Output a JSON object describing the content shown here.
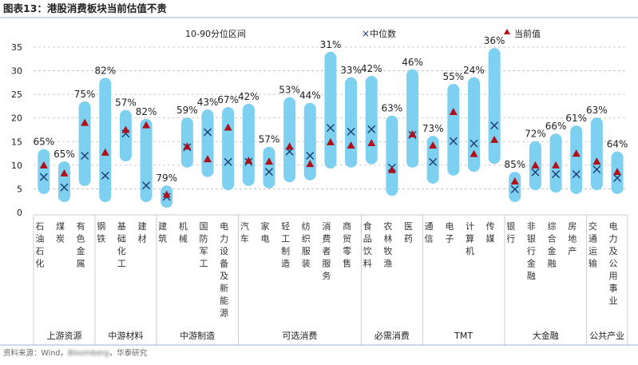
{
  "title": "图表13：港股消费板块当前估值不贵",
  "source": {
    "prefix": "资料来源：Wind，",
    "blurred": "Bloomberg",
    "suffix": "，华泰研究"
  },
  "colors": {
    "range": "#7dd0f0",
    "median": "#1f3a6e",
    "current": "#b0101a",
    "grid": "#bbbbbb",
    "text": "#222222"
  },
  "chart_data": {
    "type": "range-bar",
    "legend": {
      "range": "10-90分位区间",
      "median": "中位数",
      "current": "当前值",
      "placement": "top"
    },
    "ylim": [
      0,
      35
    ],
    "yticks": [
      0,
      5,
      10,
      15,
      20,
      25,
      30,
      35
    ],
    "grid": true,
    "categories": [
      {
        "name": "石油石化",
        "group": "上游资源",
        "p10": 4.4,
        "p90": 12.9,
        "median": 7.5,
        "current": 10.0,
        "percentile": "65%"
      },
      {
        "name": "煤炭",
        "group": "上游资源",
        "p10": 2.7,
        "p90": 10.3,
        "median": 5.3,
        "current": 8.3,
        "percentile": "65%"
      },
      {
        "name": "有色金属",
        "group": "上游资源",
        "p10": 6.1,
        "p90": 23.0,
        "median": 12.0,
        "current": 19.0,
        "percentile": "75%"
      },
      {
        "name": "钢铁",
        "group": "中游材料",
        "p10": 2.7,
        "p90": 28.0,
        "median": 7.8,
        "current": 12.7,
        "percentile": "82%"
      },
      {
        "name": "基础化工",
        "group": "中游材料",
        "p10": 11.3,
        "p90": 21.2,
        "median": 16.7,
        "current": 17.5,
        "percentile": "57%"
      },
      {
        "name": "建材",
        "group": "中游材料",
        "p10": 2.7,
        "p90": 19.3,
        "median": 5.7,
        "current": 18.5,
        "percentile": "82%"
      },
      {
        "name": "建筑",
        "group": "中游制造",
        "p10": 1.5,
        "p90": 5.2,
        "median": 3.3,
        "current": 3.8,
        "percentile": "79%"
      },
      {
        "name": "机械",
        "group": "中游制造",
        "p10": 10.0,
        "p90": 19.6,
        "median": 13.8,
        "current": 14.0,
        "percentile": "59%"
      },
      {
        "name": "国防军工",
        "group": "中游制造",
        "p10": 8.0,
        "p90": 21.3,
        "median": 17.0,
        "current": 11.3,
        "percentile": "43%"
      },
      {
        "name": "电力设备及新能源",
        "group": "中游制造",
        "p10": 5.2,
        "p90": 21.8,
        "median": 10.7,
        "current": 18.0,
        "percentile": "67%"
      },
      {
        "name": "汽车",
        "group": "可选消费",
        "p10": 6.1,
        "p90": 22.5,
        "median": 10.7,
        "current": 11.0,
        "percentile": "42%"
      },
      {
        "name": "家电",
        "group": "可选消费",
        "p10": 5.6,
        "p90": 13.4,
        "median": 8.6,
        "current": 10.8,
        "percentile": "57%"
      },
      {
        "name": "轻工制造",
        "group": "可选消费",
        "p10": 6.9,
        "p90": 23.9,
        "median": 12.9,
        "current": 14.0,
        "percentile": "53%"
      },
      {
        "name": "纺织服装",
        "group": "可选消费",
        "p10": 7.3,
        "p90": 22.7,
        "median": 12.0,
        "current": 10.3,
        "percentile": "44%"
      },
      {
        "name": "消费者服务",
        "group": "可选消费",
        "p10": 9.8,
        "p90": 33.5,
        "median": 17.9,
        "current": 14.9,
        "percentile": "31%"
      },
      {
        "name": "商贸零售",
        "group": "可选消费",
        "p10": 10.0,
        "p90": 28.1,
        "median": 17.1,
        "current": 14.2,
        "percentile": "33%"
      },
      {
        "name": "食品饮料",
        "group": "必需消费",
        "p10": 10.7,
        "p90": 28.4,
        "median": 17.6,
        "current": 14.7,
        "percentile": "42%"
      },
      {
        "name": "农林牧渔",
        "group": "必需消费",
        "p10": 4.0,
        "p90": 20.0,
        "median": 9.5,
        "current": 9.0,
        "percentile": "63%"
      },
      {
        "name": "医药",
        "group": "必需消费",
        "p10": 10.0,
        "p90": 29.8,
        "median": 16.4,
        "current": 16.6,
        "percentile": "46%"
      },
      {
        "name": "通信",
        "group": "TMT",
        "p10": 6.6,
        "p90": 15.7,
        "median": 10.7,
        "current": 14.2,
        "percentile": "73%"
      },
      {
        "name": "电子",
        "group": "TMT",
        "p10": 8.3,
        "p90": 26.7,
        "median": 15.1,
        "current": 21.3,
        "percentile": "55%"
      },
      {
        "name": "计算机",
        "group": "TMT",
        "p10": 9.1,
        "p90": 28.1,
        "median": 14.6,
        "current": 12.4,
        "percentile": "24%"
      },
      {
        "name": "传媒",
        "group": "TMT",
        "p10": 10.8,
        "p90": 34.3,
        "median": 18.4,
        "current": 15.4,
        "percentile": "36%"
      },
      {
        "name": "银行",
        "group": "大金融",
        "p10": 2.7,
        "p90": 8.1,
        "median": 4.9,
        "current": 6.6,
        "percentile": "85%"
      },
      {
        "name": "非银行金融",
        "group": "大金融",
        "p10": 5.2,
        "p90": 14.6,
        "median": 8.5,
        "current": 10.0,
        "percentile": "72%"
      },
      {
        "name": "综合金融",
        "group": "大金融",
        "p10": 4.7,
        "p90": 16.2,
        "median": 8.1,
        "current": 10.0,
        "percentile": "66%"
      },
      {
        "name": "房地产",
        "group": "大金融",
        "p10": 4.4,
        "p90": 17.9,
        "median": 8.1,
        "current": 12.5,
        "percentile": "61%"
      },
      {
        "name": "交通运输",
        "group": "公共产业",
        "p10": 5.2,
        "p90": 19.6,
        "median": 9.1,
        "current": 10.8,
        "percentile": "63%"
      },
      {
        "name": "电力及公用事业",
        "group": "公共产业",
        "p10": 4.4,
        "p90": 12.4,
        "median": 7.3,
        "current": 8.6,
        "percentile": "64%"
      }
    ],
    "groups": [
      "上游资源",
      "中游材料",
      "中游制造",
      "可选消费",
      "必需消费",
      "TMT",
      "大金融",
      "公共产业"
    ]
  }
}
